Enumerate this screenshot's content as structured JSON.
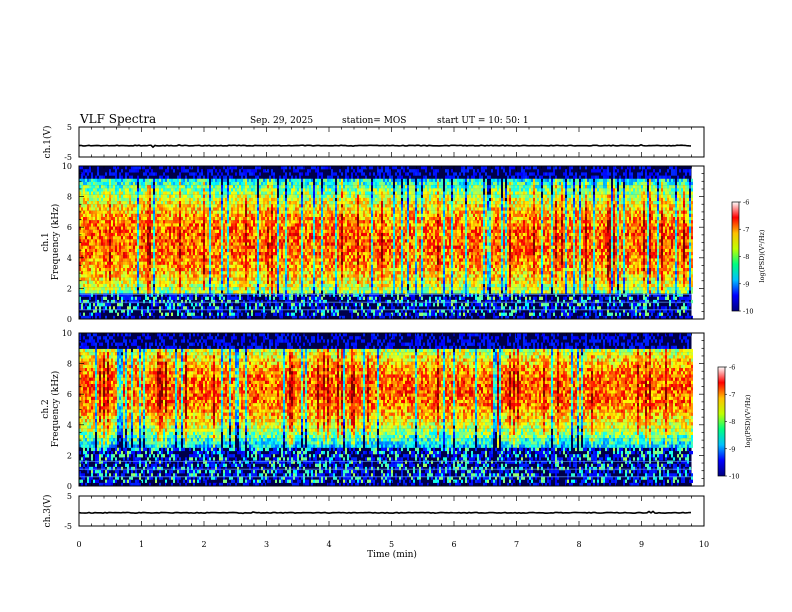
{
  "header": {
    "title": "VLF Spectra",
    "date": "Sep. 29, 2025",
    "station": "station= MOS",
    "start": "start  UT =   10: 50: 1"
  },
  "chart_data": [
    {
      "type": "line",
      "panel": "ch1-waveform",
      "ylabel": "ch.1(V)",
      "ylim": [
        -5,
        5
      ],
      "yticks": [
        "5",
        "-5"
      ],
      "x": [
        0,
        9.8
      ],
      "values": [
        -1.2,
        -1.2
      ],
      "color": "#000000"
    },
    {
      "type": "heatmap",
      "panel": "ch1-spectrogram",
      "ylabel_line1": "ch.1",
      "ylabel_line2": "Frequency (kHz)",
      "ylim": [
        0,
        10
      ],
      "yticks": [
        "0",
        "2",
        "4",
        "6",
        "8",
        "10"
      ],
      "xlim": [
        0,
        10
      ],
      "data_end_min": 9.8,
      "peak_band_khz": [
        1.6,
        9.2
      ],
      "peak_center_khz": 5.0,
      "colorbar": {
        "label": "log(PSD)(V²/Hz)",
        "range": [
          -10,
          -6
        ],
        "ticks": [
          "-6",
          "-7",
          "-8",
          "-9",
          "-10"
        ],
        "colormap": [
          "#00007f",
          "#0000ff",
          "#00c0ff",
          "#00ff80",
          "#c0ff00",
          "#ffc000",
          "#ff0000",
          "#ffffff"
        ]
      }
    },
    {
      "type": "heatmap",
      "panel": "ch2-spectrogram",
      "ylabel_line1": "ch.2",
      "ylabel_line2": "Frequency (kHz)",
      "ylim": [
        0,
        10
      ],
      "yticks": [
        "0",
        "2",
        "4",
        "6",
        "8",
        "10"
      ],
      "xlim": [
        0,
        10
      ],
      "data_end_min": 9.8,
      "peak_band_khz": [
        2.5,
        9.0
      ],
      "peak_center_khz": 6.3,
      "colorbar": {
        "label": "log(PSD)(V²/Hz)",
        "range": [
          -10,
          -6
        ],
        "ticks": [
          "-6",
          "-7",
          "-8",
          "-9",
          "-10"
        ],
        "colormap": [
          "#00007f",
          "#0000ff",
          "#00c0ff",
          "#00ff80",
          "#c0ff00",
          "#ffc000",
          "#ff0000",
          "#ffffff"
        ]
      }
    },
    {
      "type": "line",
      "panel": "ch3-waveform",
      "ylabel": "ch.3(V)",
      "ylim": [
        -5,
        5
      ],
      "yticks": [
        "5",
        "-5"
      ],
      "x": [
        0,
        9.8
      ],
      "values": [
        -0.6,
        -0.6
      ],
      "color": "#000000"
    }
  ],
  "xaxis": {
    "label": "Time (min)",
    "ticks": [
      "0",
      "1",
      "2",
      "3",
      "4",
      "5",
      "6",
      "7",
      "8",
      "9",
      "10"
    ]
  }
}
